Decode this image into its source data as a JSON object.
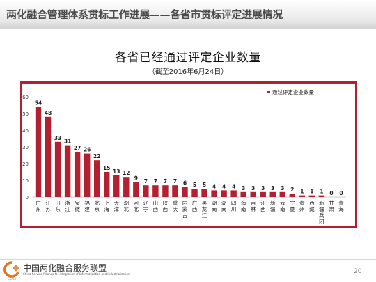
{
  "slide": {
    "title": "两化融合管理体系贯标工作进展——各省市贯标评定进展情况",
    "page_number": "20"
  },
  "footer": {
    "org_name": "中国两化融合服务联盟",
    "org_name_en": "China Service Alliance for Integration of Informatization and Industrialization",
    "logo_text": "CSAIII",
    "logo_color": "#e0761c"
  },
  "chart_data": {
    "type": "bar",
    "title": "各省已经通过评定企业数量",
    "subtitle": "（截至2016年6月24日）",
    "categories": [
      "广东",
      "江苏",
      "山东",
      "浙江",
      "安徽",
      "福建",
      "北京",
      "上海",
      "天津",
      "湖北",
      "河北",
      "辽宁",
      "山西",
      "陕西",
      "重庆",
      "内蒙古",
      "广西",
      "黑龙江",
      "湖南",
      "湖南",
      "四川",
      "海南",
      "吉林",
      "江西",
      "新疆",
      "云南",
      "宁夏",
      "贵州",
      "西藏",
      "新疆兵团",
      "甘肃",
      "青海"
    ],
    "series": [
      {
        "name": "通过评定企业数量",
        "values": [
          54,
          48,
          33,
          31,
          27,
          26,
          22,
          15,
          13,
          12,
          9,
          7,
          7,
          7,
          7,
          6,
          5,
          5,
          4,
          4,
          4,
          3,
          3,
          3,
          3,
          3,
          2,
          1,
          1,
          1,
          0,
          0
        ]
      }
    ],
    "ylim": [
      0,
      60
    ],
    "yticks": [
      0,
      10,
      20,
      30,
      40,
      50,
      60
    ],
    "xlabel": "",
    "ylabel": "",
    "grid": false,
    "legend_position": "top-right",
    "data_labels": true,
    "bar_color": "#b3202f",
    "frame_color": "#b3202f"
  }
}
